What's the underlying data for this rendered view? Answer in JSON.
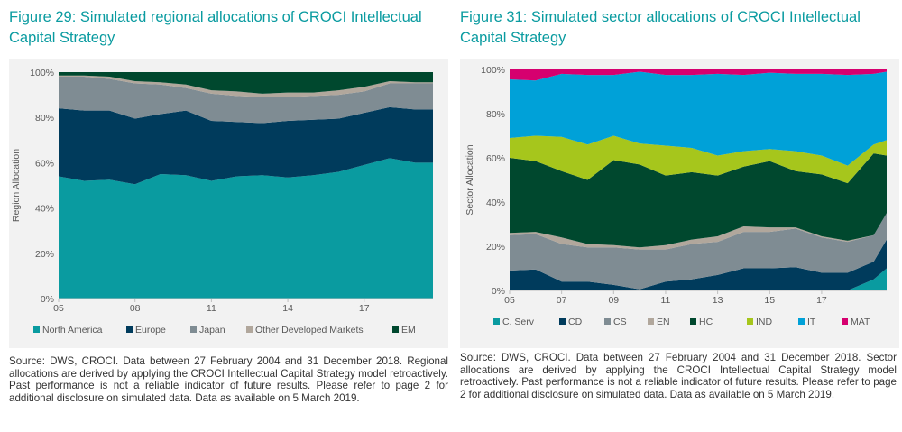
{
  "left": {
    "title": "Figure 29: Simulated regional allocations of CROCI Intellectual Capital Strategy",
    "source": "Source: DWS, CROCI. Data between 27 February 2004 and 31 December 2018. Regional allocations are derived by applying the CROCI Intellectual Capital Strategy model retroactively. Past performance is not a reliable indicator of future results. Please refer to page 2 for additional disclosure on simulated data. Data as available on 5 March 2019.",
    "chart_data": {
      "type": "area",
      "stacked": true,
      "title": "",
      "xlabel": "",
      "ylabel": "Region Allocation",
      "ylim": [
        0,
        100
      ],
      "xlim": [
        2005,
        2019.7
      ],
      "yticks": [
        "0%",
        "20%",
        "40%",
        "60%",
        "80%",
        "100%"
      ],
      "xticks": [
        {
          "label": "05",
          "x": 2005
        },
        {
          "label": "08",
          "x": 2008
        },
        {
          "label": "11",
          "x": 2011
        },
        {
          "label": "14",
          "x": 2014
        },
        {
          "label": "17",
          "x": 2017
        }
      ],
      "x": [
        2005,
        2006,
        2007,
        2008,
        2009,
        2010,
        2011,
        2012,
        2013,
        2014,
        2015,
        2016,
        2017,
        2018,
        2019,
        2019.7
      ],
      "series": [
        {
          "name": "North America",
          "color": "#0a9ba0",
          "values": [
            54,
            52,
            52.5,
            50.5,
            55,
            54.5,
            52,
            54,
            54.5,
            53.5,
            54.5,
            56,
            59,
            62,
            60,
            60
          ]
        },
        {
          "name": "Europe",
          "color": "#003b5c",
          "values": [
            30,
            31,
            30.5,
            29,
            26.5,
            28.5,
            26.5,
            24,
            23,
            25,
            24.5,
            23.5,
            23,
            22.5,
            23.5,
            23.5
          ]
        },
        {
          "name": "Japan",
          "color": "#7f8c93",
          "values": [
            14,
            15,
            14,
            15.5,
            13,
            10,
            12,
            11.5,
            11.5,
            10.5,
            10.5,
            10.5,
            9.5,
            10.5,
            11.5,
            11.5
          ]
        },
        {
          "name": "Other Developed Markets",
          "color": "#b1a79c",
          "values": [
            0.5,
            0.5,
            1,
            1,
            1,
            1.5,
            1.5,
            2,
            1.5,
            2,
            1.5,
            2,
            2,
            1,
            0.5,
            0.5
          ]
        },
        {
          "name": "EM",
          "color": "#00482e",
          "values": [
            1.5,
            1.5,
            2,
            4,
            4.5,
            5.5,
            8,
            8.5,
            9.5,
            9,
            9,
            8,
            6.5,
            4,
            4.5,
            4.5
          ]
        }
      ]
    }
  },
  "right": {
    "title": "Figure 31: Simulated sector allocations of CROCI Intellectual Capital Strategy",
    "source": "Source: DWS, CROCI. Data between 27 February 2004 and 31 December 2018. Sector allocations are derived by applying the CROCI Intellectual Capital Strategy model retroactively. Past performance is not a reliable indicator of future results. Please refer to page 2 for additional disclosure on simulated data. Data as available on 5 March 2019.",
    "chart_data": {
      "type": "area",
      "stacked": true,
      "title": "",
      "xlabel": "",
      "ylabel": "Sector Allocation",
      "ylim": [
        0,
        100
      ],
      "xlim": [
        2005,
        2019.5
      ],
      "yticks": [
        "0%",
        "20%",
        "40%",
        "60%",
        "80%",
        "100%"
      ],
      "xticks": [
        {
          "label": "05",
          "x": 2005
        },
        {
          "label": "07",
          "x": 2007
        },
        {
          "label": "09",
          "x": 2009
        },
        {
          "label": "11",
          "x": 2011
        },
        {
          "label": "13",
          "x": 2013
        },
        {
          "label": "15",
          "x": 2015
        },
        {
          "label": "17",
          "x": 2017
        }
      ],
      "x": [
        2005,
        2006,
        2007,
        2008,
        2009,
        2010,
        2011,
        2012,
        2013,
        2014,
        2015,
        2016,
        2017,
        2018,
        2019,
        2019.5
      ],
      "series": [
        {
          "name": "C. Serv",
          "color": "#0a9ba0",
          "values": [
            0,
            0,
            0,
            0,
            0,
            0,
            0,
            0,
            0,
            0,
            0,
            0,
            0,
            0,
            5,
            10
          ]
        },
        {
          "name": "CD",
          "color": "#003b5c",
          "values": [
            9,
            9.5,
            4,
            4,
            2.5,
            0.5,
            4,
            5,
            7,
            10,
            10,
            10.5,
            8,
            8,
            8,
            13
          ]
        },
        {
          "name": "CS",
          "color": "#7f8c93",
          "values": [
            16,
            16,
            17,
            15.5,
            17,
            18,
            14.5,
            16,
            15,
            16.5,
            16.5,
            17.5,
            16,
            14,
            12,
            12
          ]
        },
        {
          "name": "EN",
          "color": "#b1a79c",
          "values": [
            1,
            1,
            3,
            1.5,
            1,
            1,
            2,
            2,
            2.5,
            2.5,
            2,
            0.5,
            0.5,
            0.5,
            0,
            0
          ]
        },
        {
          "name": "HC",
          "color": "#00482e",
          "values": [
            34,
            32,
            30,
            29,
            38.5,
            37.5,
            31.5,
            30.5,
            27.5,
            27,
            30,
            25.5,
            28,
            26,
            37,
            26
          ]
        },
        {
          "name": "IND",
          "color": "#a6c61c",
          "values": [
            9,
            11.5,
            15.5,
            16,
            11,
            9.5,
            13.5,
            11,
            9,
            7,
            5.5,
            9,
            8.5,
            8,
            4,
            7
          ]
        },
        {
          "name": "IT",
          "color": "#00a1d8",
          "values": [
            26.5,
            25,
            28.5,
            31.5,
            27.5,
            32.5,
            32,
            33,
            37,
            34.5,
            34.5,
            35,
            37,
            41,
            32,
            31
          ]
        },
        {
          "name": "MAT",
          "color": "#d6006f",
          "values": [
            4.5,
            5,
            2,
            2.5,
            2.5,
            1,
            2.5,
            2.5,
            2,
            2.5,
            1.5,
            2,
            2,
            2.5,
            2,
            1
          ]
        }
      ]
    }
  }
}
